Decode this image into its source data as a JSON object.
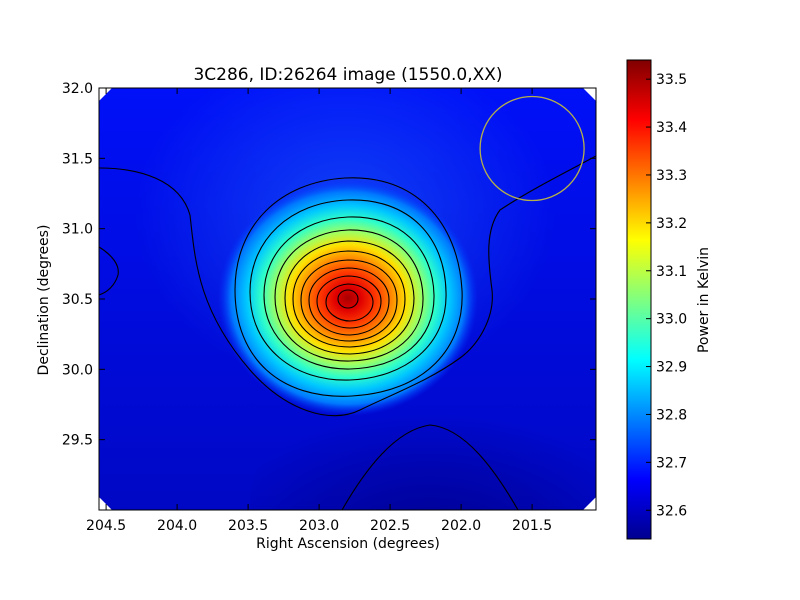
{
  "chart_data": {
    "type": "heatmap",
    "title": "3C286, ID:26264 image (1550.0,XX)",
    "xlabel": "Right Ascension (degrees)",
    "ylabel": "Declination (degrees)",
    "xlim": [
      204.55,
      201.05
    ],
    "ylim": [
      29.0,
      32.0
    ],
    "x_ticks": [
      "204.5",
      "204.0",
      "203.5",
      "203.0",
      "202.5",
      "202.0",
      "201.5"
    ],
    "x_tick_values": [
      204.5,
      204.0,
      203.5,
      203.0,
      202.5,
      202.0,
      201.5
    ],
    "y_ticks": [
      "29.5",
      "30.0",
      "30.5",
      "31.0",
      "31.5",
      "32.0"
    ],
    "y_tick_values": [
      29.5,
      30.0,
      30.5,
      31.0,
      31.5,
      32.0
    ],
    "colorbar": {
      "label": "Power in Kelvin",
      "range": [
        32.54,
        33.54
      ],
      "ticks": [
        "32.6",
        "32.7",
        "32.8",
        "32.9",
        "33.0",
        "33.1",
        "33.2",
        "33.3",
        "33.4",
        "33.5"
      ],
      "tick_values": [
        32.6,
        32.7,
        32.8,
        32.9,
        33.0,
        33.1,
        33.2,
        33.3,
        33.4,
        33.5
      ],
      "colormap": "jet"
    },
    "peak": {
      "ra": 202.8,
      "dec": 30.52,
      "value": 33.54
    },
    "beam_circle": {
      "ra": 201.5,
      "dec": 31.57,
      "color": "#b5b04a"
    },
    "grid": false
  }
}
